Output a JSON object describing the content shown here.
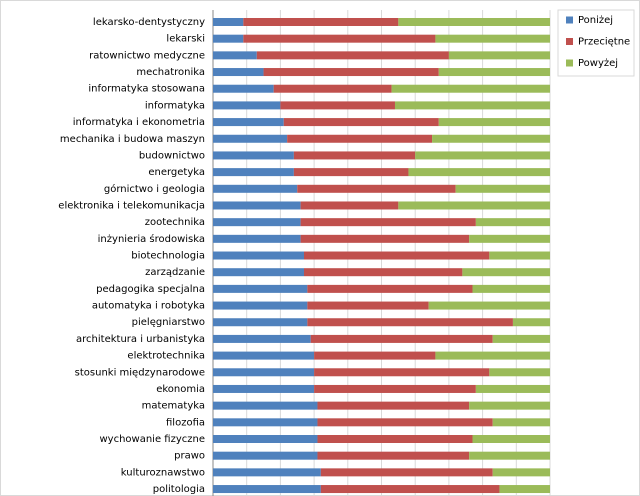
{
  "chart_data": {
    "type": "stacked_bar_100",
    "orientation": "horizontal",
    "legend": "right",
    "categories": [
      "lekarsko-dentystyczny",
      "lekarski",
      "ratownictwo medyczne",
      "mechatronika",
      "informatyka stosowana",
      "informatyka",
      "informatyka i ekonometria",
      "mechanika i budowa maszyn",
      "budownictwo",
      "energetyka",
      "górnictwo i geologia",
      "elektronika i telekomunikacja",
      "zootechnika",
      "inżynieria środowiska",
      "biotechnologia",
      "zarządzanie",
      "pedagogika specjalna",
      "automatyka i robotyka",
      "pielęgniarstwo",
      "architektura i urbanistyka",
      "elektrotechnika",
      "stosunki międzynarodowe",
      "ekonomia",
      "matematyka",
      "filozofia",
      "wychowanie fizyczne",
      "prawo",
      "kulturoznawstwo",
      "politologia"
    ],
    "series": [
      {
        "name": "Poniżej",
        "color": "#4f81bd",
        "values": [
          9,
          9,
          13,
          15,
          18,
          20,
          21,
          22,
          24,
          24,
          25,
          26,
          26,
          26,
          27,
          27,
          28,
          28,
          28,
          29,
          30,
          30,
          30,
          31,
          31,
          31,
          31,
          32,
          32
        ]
      },
      {
        "name": "Przeciętne",
        "color": "#c0504d",
        "values": [
          46,
          57,
          57,
          52,
          35,
          34,
          46,
          43,
          36,
          34,
          47,
          29,
          52,
          50,
          55,
          47,
          49,
          36,
          61,
          54,
          36,
          52,
          48,
          45,
          52,
          46,
          45,
          51,
          53
        ]
      },
      {
        "name": "Powyżej",
        "color": "#9bbb59",
        "values": [
          45,
          34,
          30,
          33,
          47,
          46,
          33,
          35,
          40,
          42,
          28,
          45,
          22,
          24,
          18,
          26,
          23,
          36,
          11,
          17,
          34,
          18,
          22,
          24,
          17,
          23,
          24,
          17,
          15
        ]
      }
    ]
  }
}
